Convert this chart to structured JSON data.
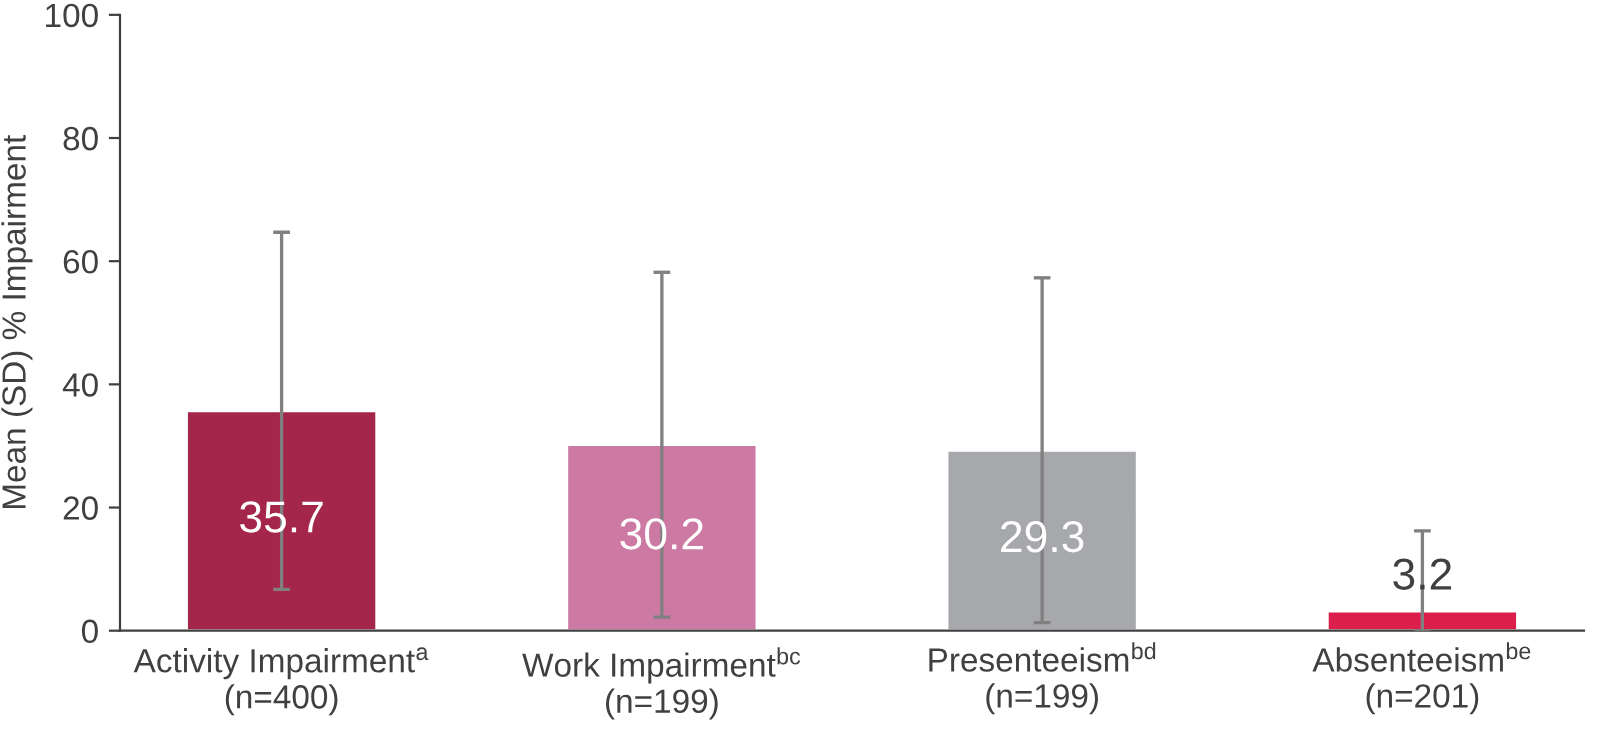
{
  "chart_data": {
    "type": "bar",
    "ylabel": "Mean (SD) % Impairment",
    "categories": [
      "Activity Impairment$^{a}$\n(n=400)",
      "Work Impairment$^{bc}$\n(n=199)",
      "Presenteeism$^{bd}$\n(n=199)",
      "Absenteeism$^{be}$\n(n=201)"
    ],
    "values": [
      35.7,
      30.2,
      29.3,
      3.2
    ],
    "colors": [
      "#a4264a",
      "#cc7aa4",
      "#a7a8ac",
      "#dc1e4a"
    ],
    "errors": [
      29.0,
      28.0,
      28.0,
      [
        0,
        16.2
      ]
    ],
    "ylim": [
      0,
      100
    ],
    "yticks": [
      0,
      20,
      40,
      60,
      80,
      100
    ],
    "data_labels": true,
    "grid": false
  }
}
